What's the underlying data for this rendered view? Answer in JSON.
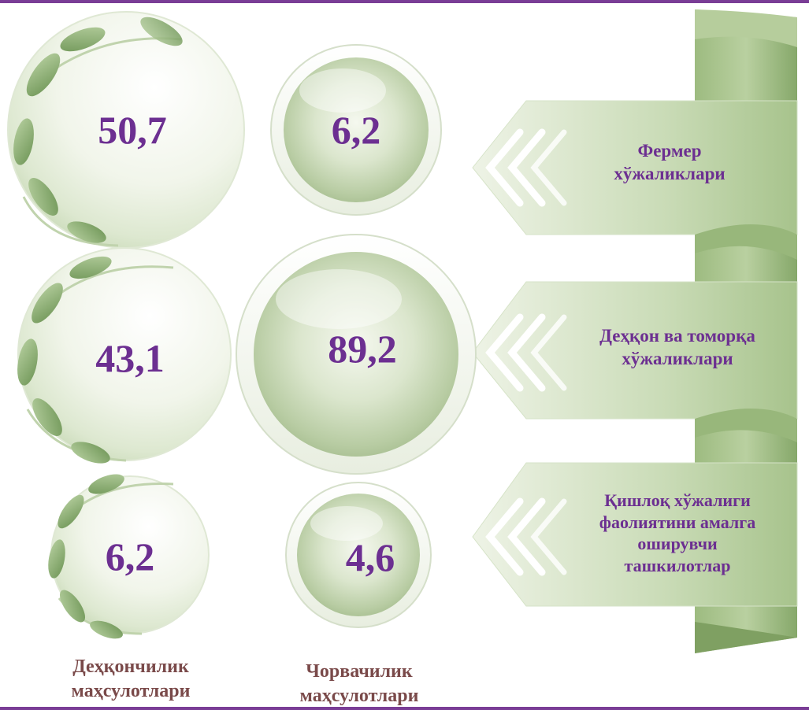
{
  "rows": [
    {
      "label_lines": [
        "Фермер",
        "хўжаликлари"
      ],
      "crop_value": "50,7",
      "livestock_value": "6,2"
    },
    {
      "label_lines": [
        "Деҳқон ва томорқа",
        "хўжаликлари"
      ],
      "crop_value": "43,1",
      "livestock_value": "89,2"
    },
    {
      "label_lines": [
        "Қишлоқ хўжалиги",
        "фаолиятини амалга",
        "оширувчи",
        "ташкилотлар"
      ],
      "crop_value": "6,2",
      "livestock_value": "4,6"
    }
  ],
  "columns": {
    "crop_lines": [
      "Деҳқончилик",
      "маҳсулотлари"
    ],
    "livestock_lines": [
      "Чорвачилик",
      "маҳсулотлари"
    ]
  },
  "colors": {
    "accent_text": "#6c2f91",
    "column_text": "#7a4a4a",
    "leaf_green": "#8fb376",
    "ribbon_green": "#a9c78f",
    "border_purple": "#7a3d96"
  }
}
